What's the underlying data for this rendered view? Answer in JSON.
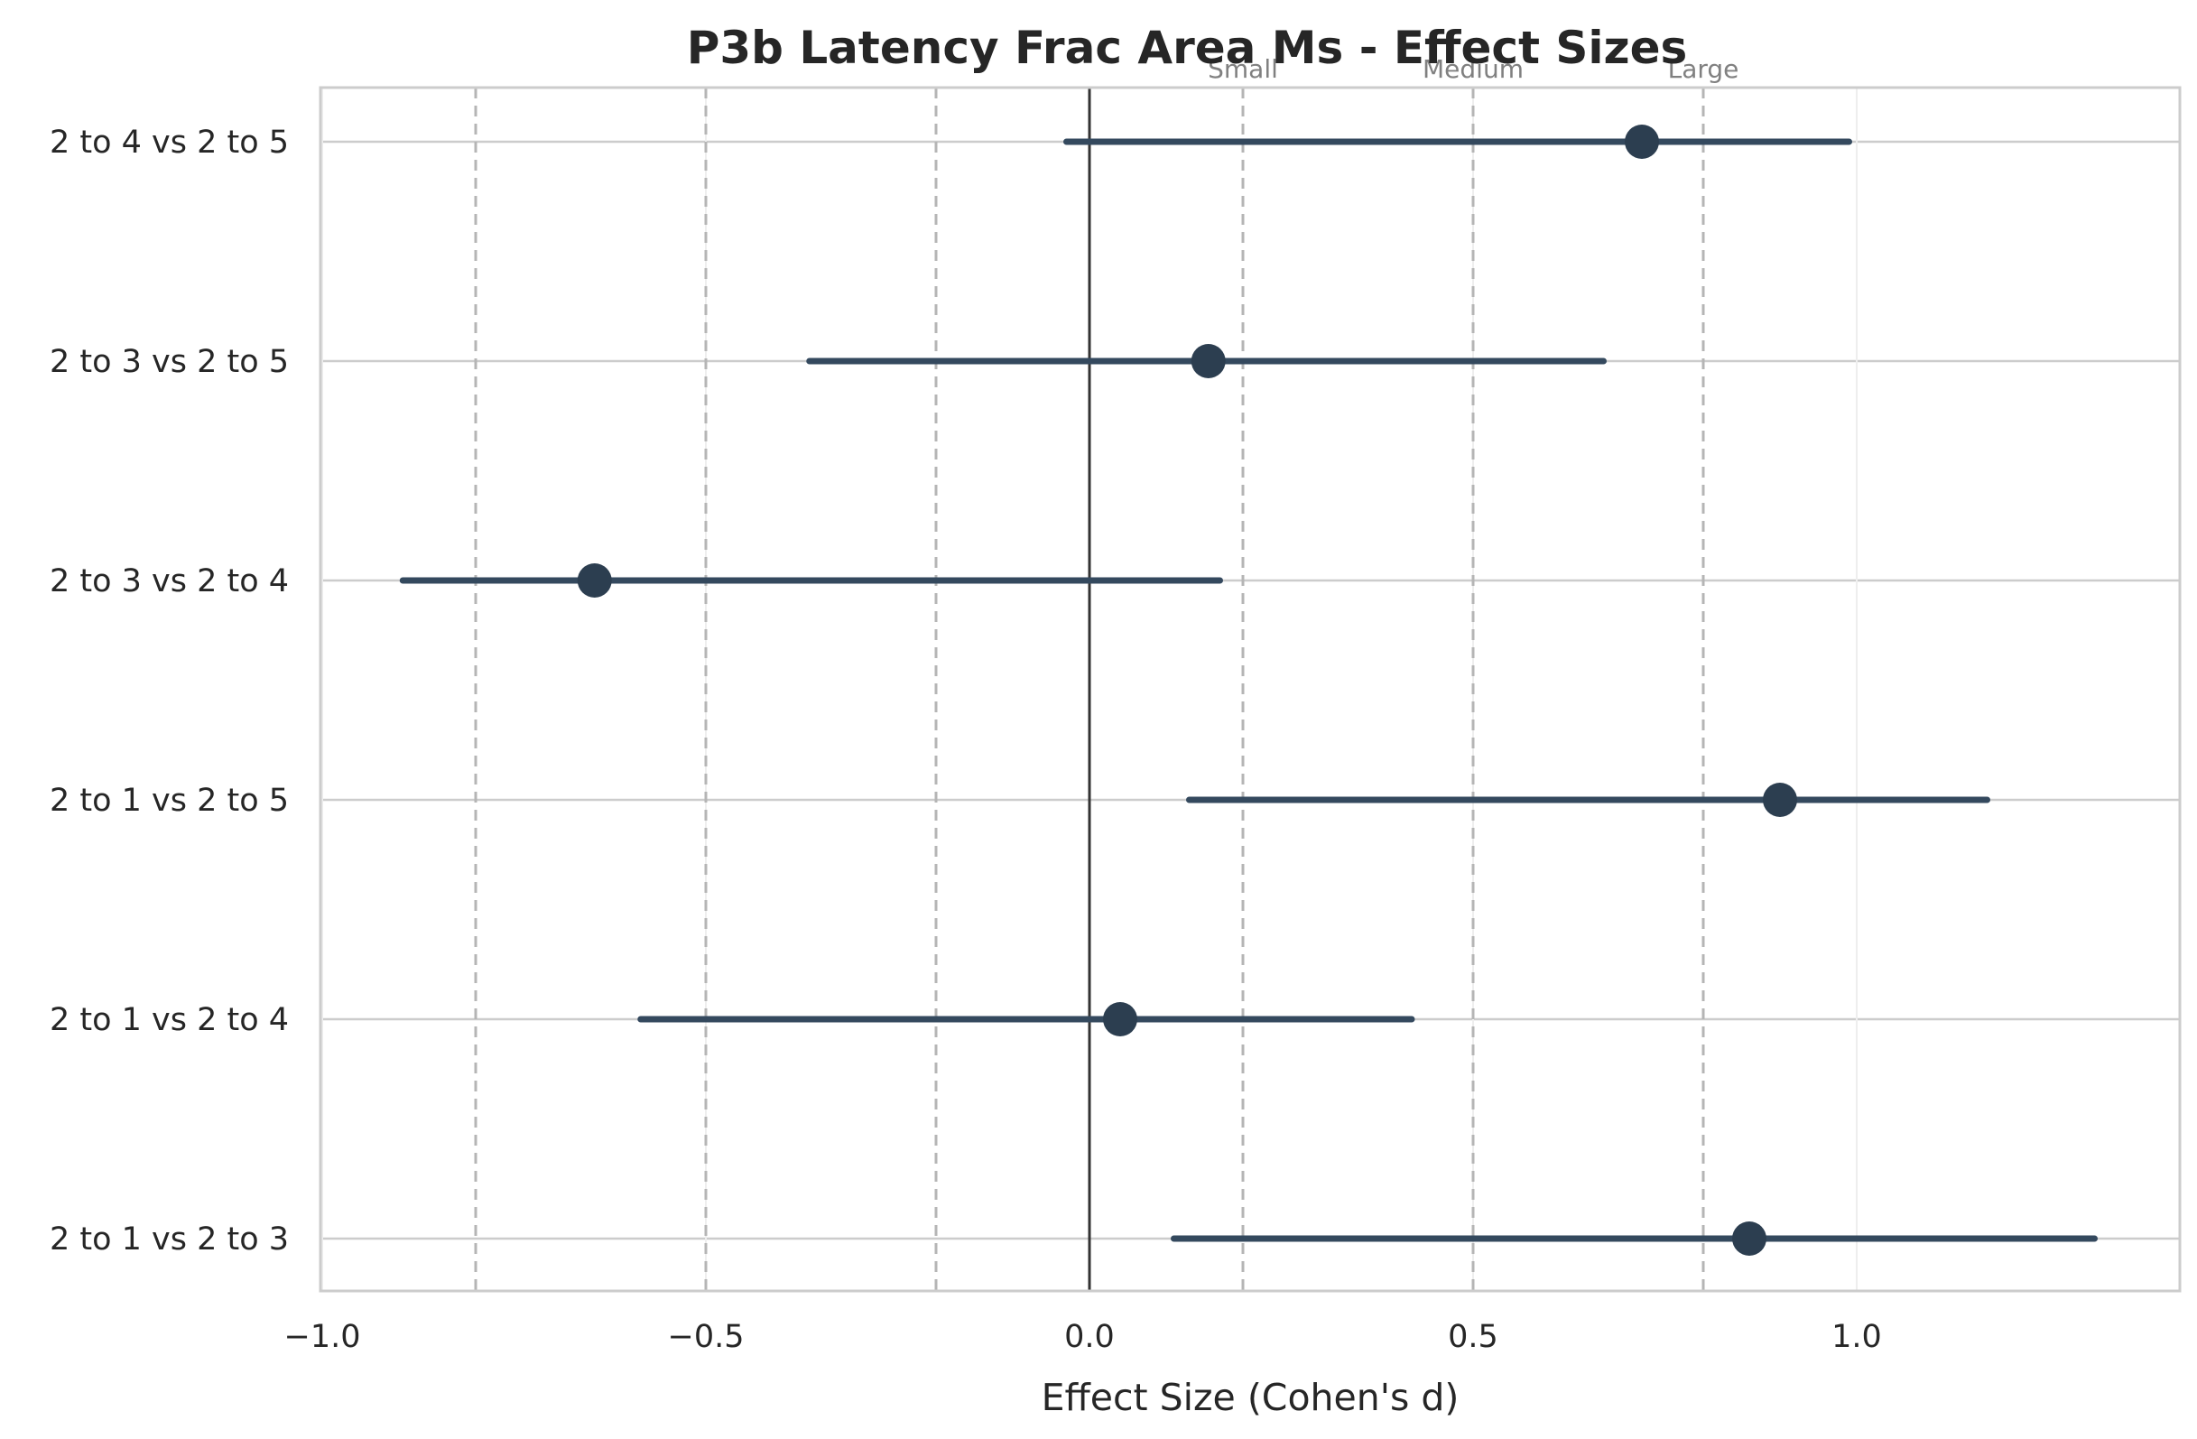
{
  "chart_data": {
    "type": "forest",
    "title": "P3b Latency Frac Area Ms - Effect Sizes",
    "xlabel": "Effect Size (Cohen's d)",
    "ylabel": "",
    "xlim": [
      -1.0,
      1.42
    ],
    "x_ticks": [
      -1.0,
      -0.5,
      0.0,
      0.5,
      1.0
    ],
    "x_tick_labels": [
      "−1.0",
      "−0.5",
      "0.0",
      "0.5",
      "1.0"
    ],
    "grid": true,
    "zero_line": 0.0,
    "reference_lines": [
      -0.8,
      -0.5,
      -0.2,
      0.2,
      0.5,
      0.8
    ],
    "threshold_labels": [
      {
        "text": "Small",
        "x": 0.2
      },
      {
        "text": "Medium",
        "x": 0.5
      },
      {
        "text": "Large",
        "x": 0.8
      }
    ],
    "comparisons": [
      {
        "label": "2 to 4 vs 2 to 5",
        "d": 0.72,
        "ci_low": -0.03,
        "ci_high": 0.99
      },
      {
        "label": "2 to 3 vs 2 to 5",
        "d": 0.155,
        "ci_low": -0.365,
        "ci_high": 0.67
      },
      {
        "label": "2 to 3 vs 2 to 4",
        "d": -0.645,
        "ci_low": -0.895,
        "ci_high": 0.17
      },
      {
        "label": "2 to 1 vs 2 to 5",
        "d": 0.9,
        "ci_low": 0.13,
        "ci_high": 1.17
      },
      {
        "label": "2 to 1 vs 2 to 4",
        "d": 0.04,
        "ci_low": -0.585,
        "ci_high": 0.42
      },
      {
        "label": "2 to 1 vs 2 to 3",
        "d": 0.86,
        "ci_low": 0.11,
        "ci_high": 1.31
      }
    ],
    "colors": {
      "marker": "#2c3e50",
      "ci": "#34495e",
      "grid": "#cccccc",
      "reference": "#b5b5b5",
      "zero": "#333333",
      "spine": "#cccccc"
    }
  }
}
